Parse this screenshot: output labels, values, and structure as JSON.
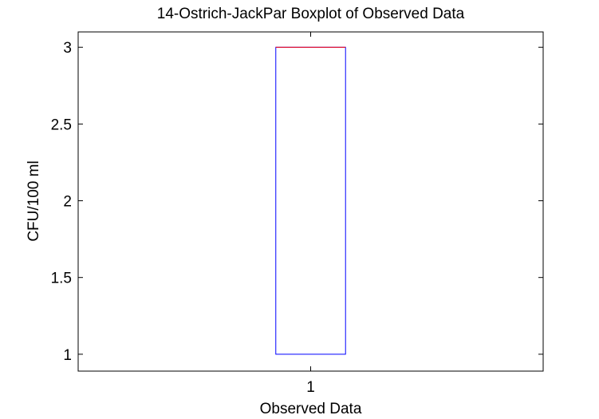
{
  "chart_data": {
    "type": "box",
    "title": "14-Ostrich-JackPar Boxplot of Observed Data",
    "xlabel": "Observed Data",
    "ylabel": "CFU/100 ml",
    "categories": [
      "1"
    ],
    "boxes": [
      {
        "category": "1",
        "q1": 1,
        "median": 3,
        "q3": 3,
        "whisker_low": 1,
        "whisker_high": 3
      }
    ],
    "xlim": [
      0.5,
      1.5
    ],
    "ylim": [
      0.89,
      3.1
    ],
    "yticks": [
      1,
      1.5,
      2,
      2.5,
      3
    ],
    "ytick_labels": [
      "1",
      "1.5",
      "2",
      "2.5",
      "3"
    ],
    "grid": false,
    "colors": {
      "box": "#0000ff",
      "median": "#ff0000",
      "axes": "#000000"
    }
  }
}
